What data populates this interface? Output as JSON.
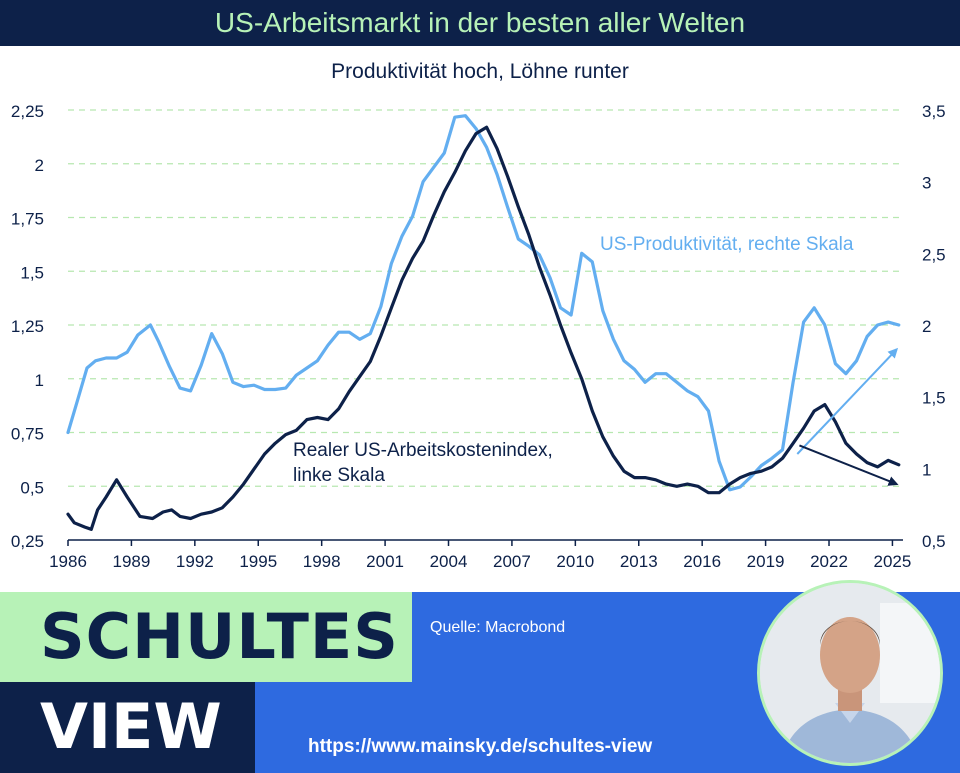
{
  "header": {
    "title": "US-Arbeitsmarkt in der besten aller Welten"
  },
  "chart_data": {
    "type": "line",
    "title": "US-Arbeitsmarkt in der besten aller Welten",
    "subtitle": "Produktivität hoch, Löhne runter",
    "xlim": [
      1986,
      2025.5
    ],
    "x_ticks": [
      "1986",
      "1989",
      "1992",
      "1995",
      "1998",
      "2001",
      "2004",
      "2007",
      "2010",
      "2013",
      "2016",
      "2019",
      "2022",
      "2025"
    ],
    "y_left": {
      "ylim": [
        0.25,
        2.25
      ],
      "ticks": [
        "0,25",
        "0,5",
        "0,75",
        "1",
        "1,25",
        "1,5",
        "1,75",
        "2",
        "2,25"
      ]
    },
    "y_right": {
      "ylim": [
        0.5,
        3.5
      ],
      "ticks": [
        "0,5",
        "1",
        "1,5",
        "2",
        "2,5",
        "3",
        "3,5"
      ]
    },
    "grid": "horizontal dashed",
    "series": [
      {
        "name": "Realer US-Arbeitskostenindex, linke Skala",
        "axis": "left",
        "color": "#0d2149",
        "x": [
          1986.0,
          1986.3,
          1986.8,
          1987.1,
          1987.4,
          1987.8,
          1988.3,
          1988.8,
          1989.4,
          1990.0,
          1990.5,
          1990.9,
          1991.3,
          1991.8,
          1992.3,
          1992.8,
          1993.3,
          1993.8,
          1994.3,
          1994.8,
          1995.3,
          1995.8,
          1996.3,
          1996.8,
          1997.3,
          1997.8,
          1998.3,
          1998.8,
          1999.3,
          1999.8,
          2000.3,
          2000.8,
          2001.3,
          2001.8,
          2002.3,
          2002.8,
          2003.3,
          2003.8,
          2004.3,
          2004.8,
          2005.3,
          2005.8,
          2006.3,
          2006.8,
          2007.3,
          2007.8,
          2008.3,
          2008.8,
          2009.3,
          2009.8,
          2010.3,
          2010.8,
          2011.3,
          2011.8,
          2012.3,
          2012.8,
          2013.3,
          2013.8,
          2014.3,
          2014.8,
          2015.3,
          2015.8,
          2016.3,
          2016.8,
          2017.3,
          2017.8,
          2018.3,
          2018.8,
          2019.3,
          2019.8,
          2020.3,
          2020.8,
          2021.3,
          2021.8,
          2022.3,
          2022.8,
          2023.3,
          2023.8,
          2024.3,
          2024.8,
          2025.3
        ],
        "values": [
          0.37,
          0.33,
          0.31,
          0.3,
          0.39,
          0.45,
          0.53,
          0.45,
          0.36,
          0.35,
          0.38,
          0.39,
          0.36,
          0.35,
          0.37,
          0.38,
          0.4,
          0.45,
          0.51,
          0.58,
          0.65,
          0.7,
          0.74,
          0.76,
          0.81,
          0.82,
          0.81,
          0.86,
          0.94,
          1.01,
          1.08,
          1.2,
          1.33,
          1.46,
          1.56,
          1.64,
          1.76,
          1.87,
          1.96,
          2.06,
          2.14,
          2.17,
          2.07,
          1.94,
          1.8,
          1.67,
          1.52,
          1.39,
          1.25,
          1.12,
          1.0,
          0.85,
          0.73,
          0.64,
          0.57,
          0.54,
          0.54,
          0.53,
          0.51,
          0.5,
          0.51,
          0.5,
          0.47,
          0.47,
          0.51,
          0.54,
          0.56,
          0.57,
          0.59,
          0.63,
          0.7,
          0.77,
          0.85,
          0.88,
          0.8,
          0.7,
          0.65,
          0.61,
          0.59,
          0.62,
          0.6
        ]
      },
      {
        "name": "US-Produktivität, rechte Skala",
        "axis": "right",
        "color": "#63aef0",
        "x": [
          1986.0,
          1986.4,
          1986.9,
          1987.3,
          1987.8,
          1988.3,
          1988.8,
          1989.3,
          1989.9,
          1990.3,
          1990.8,
          1991.3,
          1991.8,
          1992.3,
          1992.8,
          1993.3,
          1993.8,
          1994.3,
          1994.8,
          1995.3,
          1995.8,
          1996.3,
          1996.8,
          1997.3,
          1997.8,
          1998.3,
          1998.8,
          1999.3,
          1999.8,
          2000.3,
          2000.8,
          2001.3,
          2001.8,
          2002.3,
          2002.8,
          2003.3,
          2003.8,
          2004.3,
          2004.8,
          2005.3,
          2005.8,
          2006.3,
          2006.8,
          2007.3,
          2007.8,
          2008.3,
          2008.8,
          2009.3,
          2009.8,
          2010.3,
          2010.8,
          2011.3,
          2011.8,
          2012.3,
          2012.8,
          2013.3,
          2013.8,
          2014.3,
          2014.8,
          2015.3,
          2015.8,
          2016.3,
          2016.8,
          2017.3,
          2017.8,
          2018.3,
          2018.8,
          2019.3,
          2019.8,
          2020.3,
          2020.8,
          2021.3,
          2021.8,
          2022.3,
          2022.8,
          2023.3,
          2023.8,
          2024.3,
          2024.8,
          2025.3
        ],
        "values": [
          1.25,
          1.45,
          1.7,
          1.75,
          1.77,
          1.77,
          1.81,
          1.93,
          2.0,
          1.88,
          1.71,
          1.56,
          1.54,
          1.72,
          1.94,
          1.8,
          1.6,
          1.57,
          1.58,
          1.55,
          1.55,
          1.56,
          1.65,
          1.7,
          1.75,
          1.86,
          1.95,
          1.95,
          1.9,
          1.94,
          2.13,
          2.43,
          2.62,
          2.76,
          3.0,
          3.1,
          3.2,
          3.45,
          3.46,
          3.37,
          3.24,
          3.05,
          2.82,
          2.6,
          2.55,
          2.49,
          2.33,
          2.12,
          2.07,
          2.5,
          2.44,
          2.1,
          1.9,
          1.75,
          1.69,
          1.6,
          1.66,
          1.66,
          1.6,
          1.54,
          1.5,
          1.4,
          1.05,
          0.85,
          0.87,
          0.94,
          1.02,
          1.07,
          1.13,
          1.6,
          2.02,
          2.12,
          2.0,
          1.73,
          1.66,
          1.75,
          1.92,
          2.0,
          2.02,
          2.0
        ]
      }
    ],
    "annotations": [
      {
        "text_lines": [
          "Realer US-Arbeitskostenindex,",
          "linke Skala"
        ],
        "color": "#0d2149"
      },
      {
        "text_lines": [
          "US-Produktivität, rechte Skala"
        ],
        "color": "#63aef0"
      }
    ],
    "arrows": [
      {
        "color": "#63aef0",
        "from": [
          2020.5,
          1.1
        ],
        "to": [
          2025.2,
          1.83
        ],
        "axis": "right"
      },
      {
        "color": "#0d2149",
        "from": [
          2020.6,
          0.69
        ],
        "to": [
          2025.2,
          0.51
        ],
        "axis": "left"
      }
    ]
  },
  "brand": {
    "line1": "SCHULTES",
    "line2": "VIEW",
    "source": "Quelle: Macrobond",
    "url": "https://www.mainsky.de/schultes-view",
    "green": "#b7f2b7",
    "navy": "#0d2149",
    "blue": "#2e6ae0"
  }
}
